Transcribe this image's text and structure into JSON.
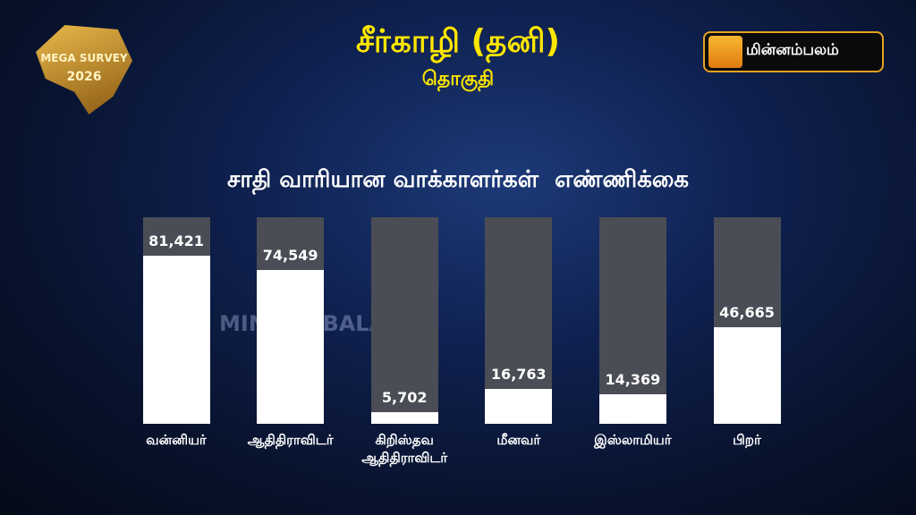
{
  "brand": {
    "badge_top": "MEGA SURVEY",
    "badge_year": "2026",
    "logo": "மின்னம்பலம்",
    "watermark": "MINNAMBALAM"
  },
  "chart_data": {
    "type": "bar",
    "title": "சீர்காழி (தனி)",
    "subtitle": "தொகுதி",
    "chart_title": "சாதி வாரியான வாக்காளர்கள்  எண்ணிக்கை",
    "categories": [
      "வன்னியர்",
      "ஆதிதிராவிடர்",
      "கிறிஸ்தவ ஆதிதிராவிடர்",
      "மீனவர்",
      "இஸ்லாமியர்",
      "பிறர்"
    ],
    "values": [
      81421,
      74549,
      5702,
      16763,
      14369,
      46665
    ],
    "value_labels": [
      "81,421",
      "74,549",
      "5,702",
      "16,763",
      "14,369",
      "46,665"
    ],
    "color": "#ffffff",
    "track_color": "#4a4d55",
    "ylim": [
      0,
      100000
    ]
  }
}
